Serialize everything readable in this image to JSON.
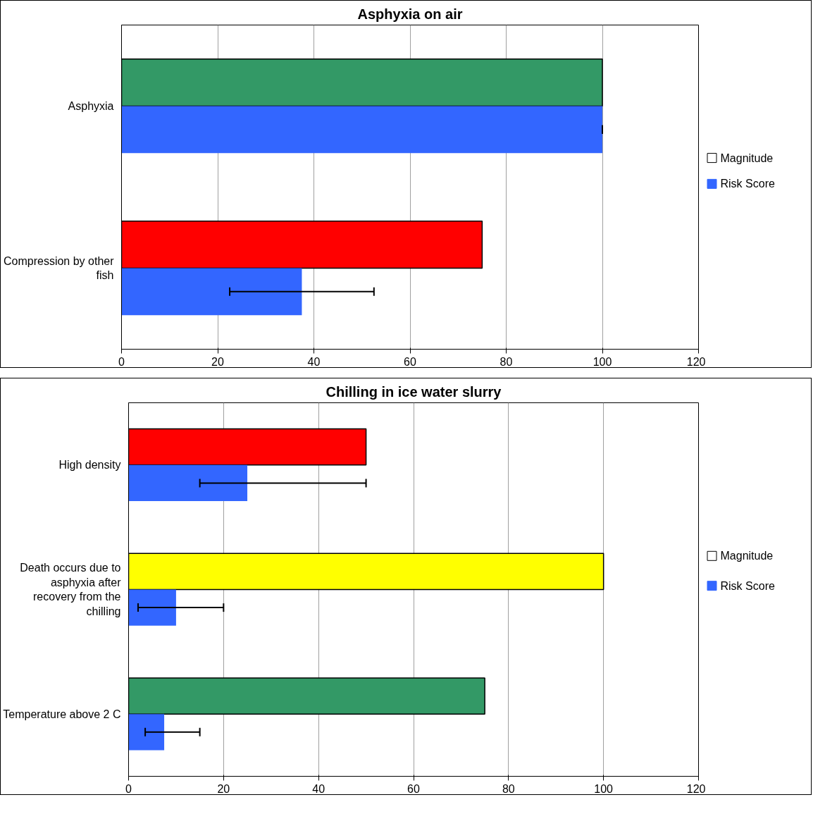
{
  "chart_data": [
    {
      "type": "bar",
      "orientation": "horizontal",
      "title": "Asphyxia on air",
      "categories": [
        "Asphyxia",
        "Compression by other fish"
      ],
      "series": [
        {
          "name": "Magnitude",
          "color": "#ffffff",
          "colors": [
            "#339966",
            "#ff0000"
          ],
          "values": [
            100,
            75
          ]
        },
        {
          "name": "Risk Score",
          "color": "#3366ff",
          "values": [
            100,
            37.5
          ],
          "errors": [
            0,
            [
              22.5,
              52.5
            ]
          ]
        }
      ],
      "xlim": [
        0,
        120
      ],
      "xticks": [
        0,
        20,
        40,
        60,
        80,
        100,
        120
      ],
      "grid": "x",
      "legend": "right"
    },
    {
      "type": "bar",
      "orientation": "horizontal",
      "title": "Chilling in ice water slurry",
      "categories": [
        "High density",
        "Death occurs due to asphyxia after recovery from the chilling",
        "Temperature above 2 C"
      ],
      "series": [
        {
          "name": "Magnitude",
          "color": "#ffffff",
          "colors": [
            "#ff0000",
            "#ffff00",
            "#339966"
          ],
          "values": [
            50,
            100,
            75
          ]
        },
        {
          "name": "Risk Score",
          "color": "#3366ff",
          "values": [
            25,
            10,
            7.5
          ],
          "errors": [
            [
              15,
              50
            ],
            [
              2,
              20
            ],
            [
              3.5,
              15
            ]
          ]
        }
      ],
      "xlim": [
        0,
        120
      ],
      "xticks": [
        0,
        20,
        40,
        60,
        80,
        100,
        120
      ],
      "grid": "x",
      "legend": "right"
    }
  ]
}
